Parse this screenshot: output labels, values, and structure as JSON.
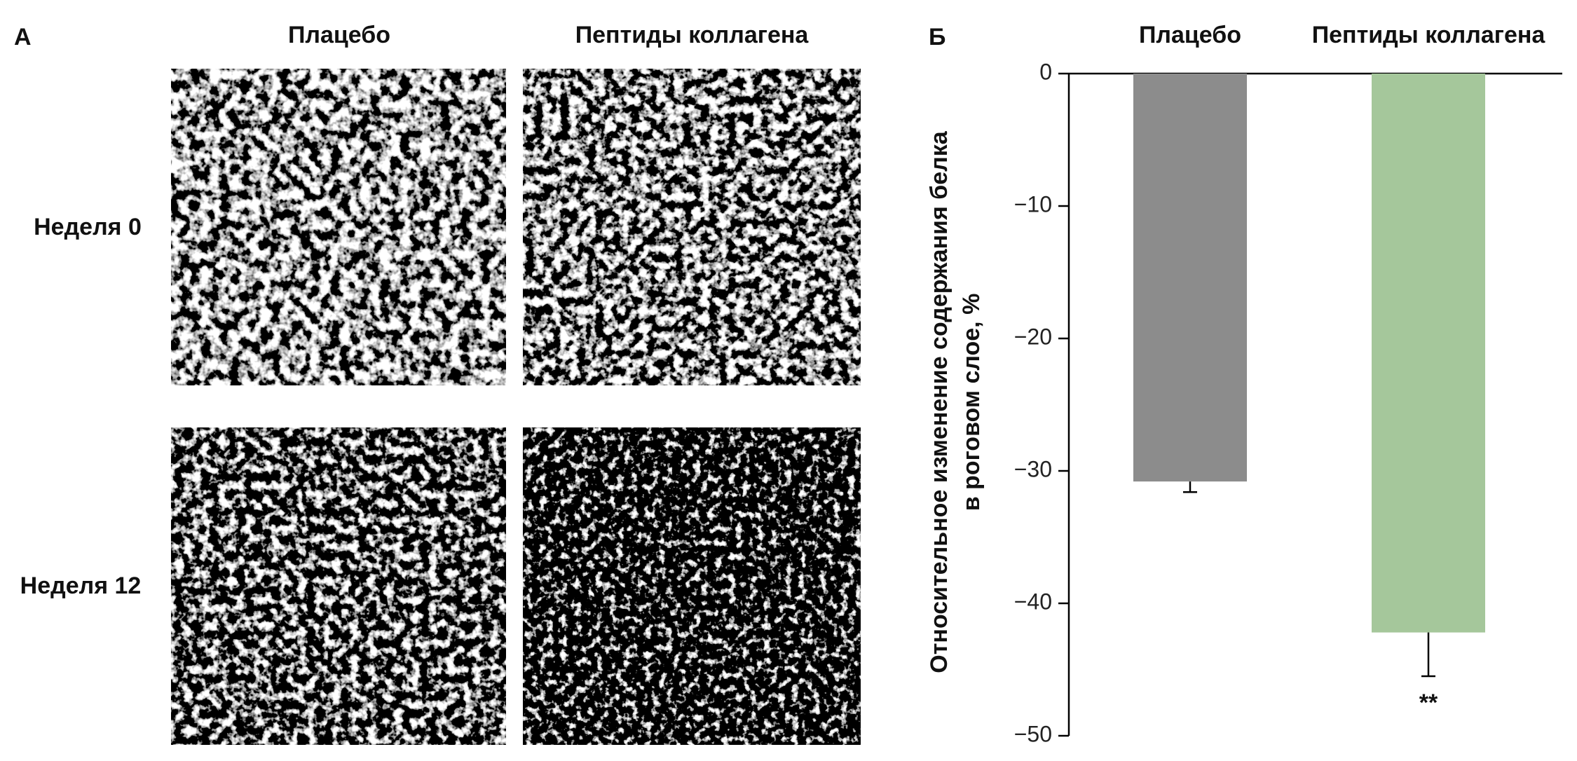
{
  "panel_a": {
    "label": "А",
    "columns": [
      "Плацебо",
      "Пептиды коллагена"
    ],
    "rows": [
      "Неделя 0",
      "Неделя 12"
    ]
  },
  "chart_data": {
    "type": "bar",
    "panel_label": "Б",
    "categories": [
      "Плацебо",
      "Пептиды коллагена"
    ],
    "values": [
      -30.8,
      -42.2
    ],
    "errors": [
      0.8,
      3.3
    ],
    "colors": [
      "#8c8c8c",
      "#a5c79b"
    ],
    "y_label": [
      "Относительное изменение содержания белка",
      "в роговом слое, %"
    ],
    "ylim": [
      -50,
      0
    ],
    "yticks": [
      0,
      {
        "value": -10,
        "label": "−10"
      },
      {
        "value": -20,
        "label": "−20"
      },
      {
        "value": -30,
        "label": "−30"
      },
      {
        "value": -40,
        "label": "−40"
      },
      {
        "value": -50,
        "label": "−50"
      }
    ],
    "annotation": "**"
  }
}
